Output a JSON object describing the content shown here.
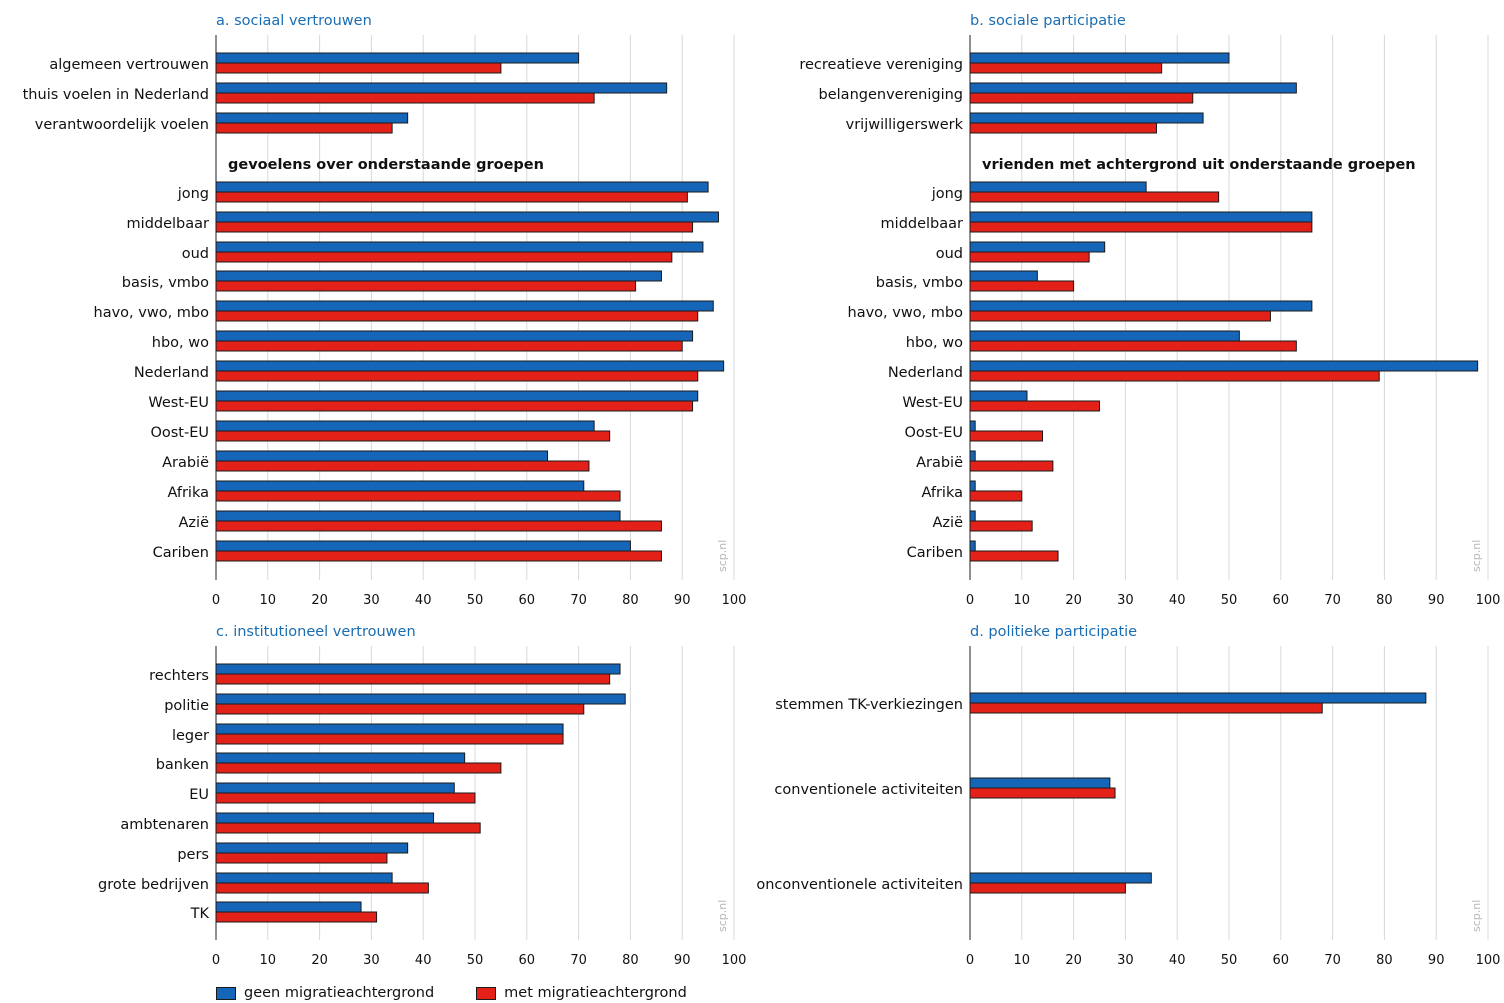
{
  "chart_data": [
    {
      "type": "bar",
      "title": "a. sociaal vertrouwen",
      "groups": [
        {
          "heading": "",
          "categories": [
            "algemeen vertrouwen",
            "thuis voelen in Nederland",
            "verantwoordelijk voelen"
          ]
        },
        {
          "heading": "gevoelens over onderstaande groepen",
          "categories": [
            "jong",
            "middelbaar",
            "oud",
            "basis, vmbo",
            "havo, vwo, mbo",
            "hbo, wo",
            "Nederland",
            "West-EU",
            "Oost-EU",
            "Arabië",
            "Afrika",
            "Azië",
            "Cariben"
          ]
        }
      ],
      "series": [
        {
          "name": "geen migratieachtergrond",
          "values": [
            70,
            87,
            37,
            95,
            97,
            94,
            86,
            96,
            92,
            98,
            93,
            73,
            64,
            71,
            78,
            80
          ]
        },
        {
          "name": "met migratieachtergrond",
          "values": [
            55,
            73,
            34,
            91,
            92,
            88,
            81,
            93,
            90,
            93,
            92,
            76,
            72,
            78,
            86,
            86
          ]
        }
      ],
      "xlim": [
        0,
        100
      ],
      "xticks": [
        "0",
        "10",
        "20",
        "30",
        "40",
        "50",
        "60",
        "70",
        "80",
        "90",
        "100"
      ],
      "watermark": "scp.nl"
    },
    {
      "type": "bar",
      "title": "b. sociale participatie",
      "groups": [
        {
          "heading": "",
          "categories": [
            "recreatieve vereniging",
            "belangenvereniging",
            "vrijwilligerswerk"
          ]
        },
        {
          "heading": "vrienden met achtergrond uit onderstaande groepen",
          "categories": [
            "jong",
            "middelbaar",
            "oud",
            "basis, vmbo",
            "havo, vwo, mbo",
            "hbo, wo",
            "Nederland",
            "West-EU",
            "Oost-EU",
            "Arabië",
            "Afrika",
            "Azië",
            "Cariben"
          ]
        }
      ],
      "series": [
        {
          "name": "geen migratieachtergrond",
          "values": [
            50,
            63,
            45,
            34,
            66,
            26,
            13,
            66,
            52,
            98,
            11,
            1,
            1,
            1,
            1,
            1
          ]
        },
        {
          "name": "met migratieachtergrond",
          "values": [
            37,
            43,
            36,
            48,
            66,
            23,
            20,
            58,
            63,
            79,
            25,
            14,
            16,
            10,
            12,
            17
          ]
        }
      ],
      "xlim": [
        0,
        100
      ],
      "xticks": [
        "0",
        "10",
        "20",
        "30",
        "40",
        "50",
        "60",
        "70",
        "80",
        "90",
        "100"
      ],
      "watermark": "scp.nl"
    },
    {
      "type": "bar",
      "title": "c. institutioneel vertrouwen",
      "groups": [
        {
          "heading": "",
          "categories": [
            "rechters",
            "politie",
            "leger",
            "banken",
            "EU",
            "ambtenaren",
            "pers",
            "grote bedrijven",
            "TK"
          ]
        }
      ],
      "series": [
        {
          "name": "geen migratieachtergrond",
          "values": [
            78,
            79,
            67,
            48,
            46,
            42,
            37,
            34,
            28
          ]
        },
        {
          "name": "met migratieachtergrond",
          "values": [
            76,
            71,
            67,
            55,
            50,
            51,
            33,
            41,
            31
          ]
        }
      ],
      "xlim": [
        0,
        100
      ],
      "xticks": [
        "0",
        "10",
        "20",
        "30",
        "40",
        "50",
        "60",
        "70",
        "80",
        "90",
        "100"
      ],
      "watermark": "scp.nl"
    },
    {
      "type": "bar",
      "title": "d. politieke participatie",
      "groups": [
        {
          "heading": "",
          "categories": [
            "stemmen TK-verkiezingen",
            "conventionele activiteiten",
            "onconventionele activiteiten"
          ]
        }
      ],
      "series": [
        {
          "name": "geen migratieachtergrond",
          "values": [
            88,
            27,
            35
          ]
        },
        {
          "name": "met migratieachtergrond",
          "values": [
            68,
            28,
            30
          ]
        }
      ],
      "xlim": [
        0,
        100
      ],
      "xticks": [
        "0",
        "10",
        "20",
        "30",
        "40",
        "50",
        "60",
        "70",
        "80",
        "90",
        "100"
      ],
      "watermark": "scp.nl"
    }
  ],
  "legend": [
    {
      "label": "geen migratieachtergrond",
      "color": "#1565b8"
    },
    {
      "label": "met migratieachtergrond",
      "color": "#e32119"
    }
  ],
  "colors": {
    "series_a": "#1565b8",
    "series_b": "#e32119",
    "title": "#1a6db3",
    "grid": "#d8d8d8"
  }
}
